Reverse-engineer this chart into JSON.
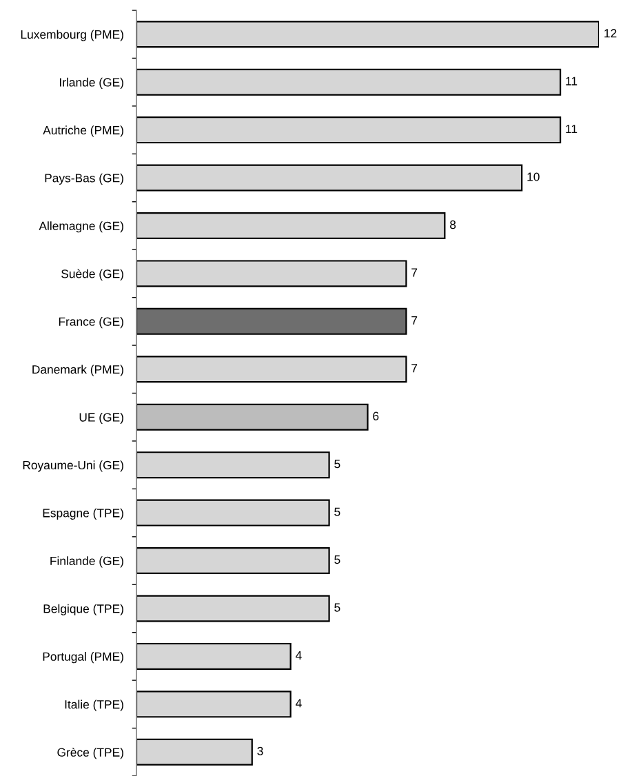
{
  "chart_data": {
    "type": "bar",
    "orientation": "horizontal",
    "categories": [
      "Luxembourg (PME)",
      "Irlande (GE)",
      "Autriche (PME)",
      "Pays-Bas (GE)",
      "Allemagne (GE)",
      "Suède (GE)",
      "France (GE)",
      "Danemark (PME)",
      "UE (GE)",
      "Royaume-Uni (GE)",
      "Espagne (TPE)",
      "Finlande (GE)",
      "Belgique (TPE)",
      "Portugal (PME)",
      "Italie (TPE)",
      "Grèce (TPE)"
    ],
    "values": [
      12,
      11,
      11,
      10,
      8,
      7,
      7,
      7,
      6,
      5,
      5,
      5,
      5,
      4,
      4,
      3
    ],
    "colors": [
      "#d6d6d6",
      "#d6d6d6",
      "#d6d6d6",
      "#d6d6d6",
      "#d6d6d6",
      "#d6d6d6",
      "#6e6e6e",
      "#d6d6d6",
      "#bcbcbc",
      "#d6d6d6",
      "#d6d6d6",
      "#d6d6d6",
      "#d6d6d6",
      "#d6d6d6",
      "#d6d6d6",
      "#d6d6d6"
    ],
    "data_labels": true
  }
}
